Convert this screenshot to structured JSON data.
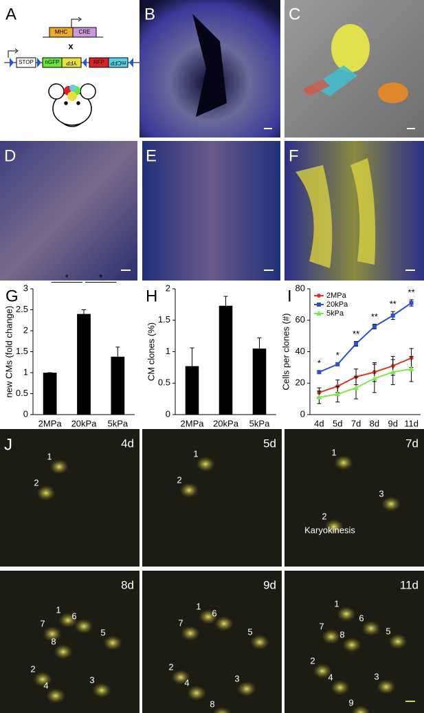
{
  "panel_letters": [
    "A",
    "B",
    "C",
    "D",
    "E",
    "F",
    "G",
    "H",
    "I",
    "J"
  ],
  "panel_a": {
    "promoter": "MHC",
    "recombinase": "CRE",
    "cross": "x",
    "construct": [
      "STOP",
      "nGFP",
      "YFP",
      "RFP",
      "mCFP"
    ]
  },
  "chart_data": [
    {
      "type": "bar",
      "y_label": "new CMs (fold change)",
      "categories": [
        "2MPa",
        "20kPa",
        "5kPa"
      ],
      "values": [
        1,
        2.4,
        1.38
      ],
      "errors": [
        0,
        0.1,
        0.23
      ],
      "color": "#000000",
      "ylim": [
        0,
        3
      ],
      "yticks": [
        0,
        0.5,
        1,
        1.5,
        2,
        2.5,
        3
      ],
      "significance": [
        {
          "categories": [
            "2MPa",
            "20kPa"
          ],
          "label": "*"
        },
        {
          "categories": [
            "20kPa",
            "5kPa"
          ],
          "label": "*"
        }
      ]
    },
    {
      "type": "bar",
      "y_label": "CM clones (%)",
      "categories": [
        "2MPa",
        "20kPa",
        "5kPa"
      ],
      "values": [
        0.77,
        1.73,
        1.05
      ],
      "errors": [
        0.29,
        0.15,
        0.17
      ],
      "color": "#000000",
      "ylim": [
        0,
        2
      ],
      "yticks": [
        0,
        0.5,
        1,
        1.5,
        2
      ]
    },
    {
      "type": "line",
      "y_label": "Cells per clones (#)",
      "categories": [
        "4d",
        "5d",
        "7d",
        "8d",
        "9d",
        "11d"
      ],
      "series": [
        {
          "name": "2MPa",
          "color": "#d63a2a",
          "marker": "circle",
          "values": [
            14,
            18,
            24,
            27,
            31,
            36
          ],
          "errors": [
            3,
            4,
            5,
            6,
            6,
            6
          ]
        },
        {
          "name": "20kPa",
          "color": "#2a4fd6",
          "marker": "square",
          "values": [
            27,
            32,
            45,
            56,
            63,
            71
          ],
          "errors": [
            1,
            1,
            1.5,
            1.5,
            2.5,
            2
          ]
        },
        {
          "name": "5kPa",
          "color": "#7ee84a",
          "marker": "triangle",
          "values": [
            11,
            13,
            17,
            23,
            27,
            29
          ],
          "errors": [
            4,
            5,
            7,
            9,
            8,
            8
          ]
        }
      ],
      "ylim": [
        0,
        80
      ],
      "yticks": [
        0,
        20,
        40,
        60,
        80
      ],
      "legend": "upper left",
      "significance": [
        "*",
        "*",
        "**",
        "**",
        "**",
        "**"
      ]
    }
  ],
  "panel_j": {
    "frames": [
      {
        "day": "4d",
        "cells": [
          "1",
          "2"
        ]
      },
      {
        "day": "5d",
        "cells": [
          "1",
          "2"
        ]
      },
      {
        "day": "7d",
        "cells": [
          "1",
          "2",
          "3"
        ],
        "note": "Karyokinesis"
      },
      {
        "day": "8d",
        "cells": [
          "1",
          "6",
          "7",
          "8",
          "5",
          "2",
          "4",
          "3"
        ]
      },
      {
        "day": "9d",
        "cells": [
          "1",
          "6",
          "7",
          "5",
          "2",
          "4",
          "3",
          "8"
        ]
      },
      {
        "day": "11d",
        "cells": [
          "1",
          "6",
          "7",
          "8",
          "5",
          "2",
          "4",
          "3",
          "9"
        ]
      }
    ]
  }
}
